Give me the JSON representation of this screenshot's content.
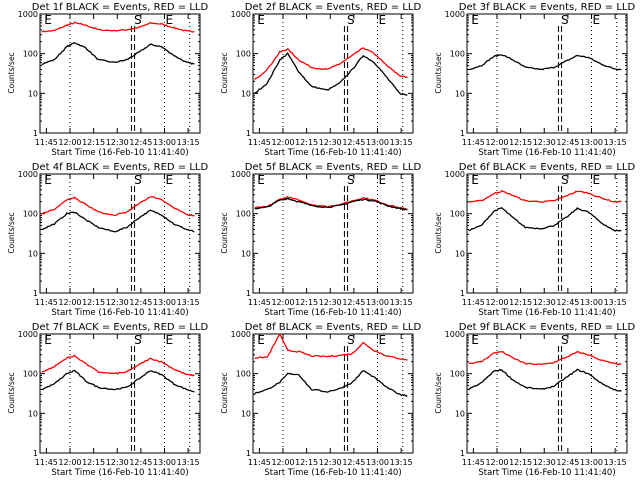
{
  "chart_data": {
    "type": "line",
    "grid": false,
    "y_scale": "log",
    "ylim": [
      1,
      1000
    ],
    "xlabel": "Start Time (16-Feb-10 11:41:40)",
    "ylabel": "Counts/sec",
    "y_ticks": [
      "1",
      "10",
      "100",
      "1000"
    ],
    "x_ticks": [
      "11:45",
      "12:00",
      "12:15",
      "12:30",
      "12:45",
      "13:00",
      "13:15"
    ],
    "series_colors": {
      "events": "#000000",
      "lld": "#ff0000"
    },
    "markers": {
      "dotted_lines": [
        "12:00",
        "13:00",
        "13:16"
      ],
      "dashed_lines": [
        "12:39",
        "12:41"
      ],
      "letters": [
        {
          "text": "E",
          "time": "11:43"
        },
        {
          "text": "S",
          "time": "12:40"
        },
        {
          "text": "E",
          "time": "13:00"
        }
      ]
    },
    "x": [
      "11:42",
      "11:50",
      "11:58",
      "12:03",
      "12:10",
      "12:18",
      "12:28",
      "12:36",
      "12:44",
      "12:51",
      "12:58",
      "13:06",
      "13:14",
      "13:19"
    ],
    "panels": [
      {
        "title": "Det 1f BLACK = Events, RED = LLD",
        "lld": [
          360,
          380,
          520,
          600,
          520,
          400,
          380,
          400,
          460,
          590,
          560,
          450,
          370,
          360
        ],
        "events": [
          55,
          70,
          150,
          190,
          140,
          70,
          60,
          70,
          110,
          170,
          150,
          90,
          60,
          55
        ]
      },
      {
        "title": "Det 2f BLACK = Events, RED = LLD",
        "lld": [
          22,
          40,
          110,
          130,
          70,
          45,
          40,
          55,
          90,
          140,
          100,
          50,
          28,
          25
        ],
        "events": [
          10,
          18,
          70,
          100,
          35,
          15,
          12,
          18,
          40,
          90,
          60,
          25,
          10,
          9
        ]
      },
      {
        "title": "Det 3f BLACK = Events, RED = LLD",
        "lld": null,
        "events": [
          40,
          50,
          85,
          95,
          70,
          45,
          40,
          45,
          65,
          90,
          80,
          55,
          42,
          40
        ]
      },
      {
        "title": "Det 4f BLACK = Events, RED = LLD",
        "lld": [
          100,
          130,
          220,
          250,
          170,
          110,
          90,
          110,
          180,
          270,
          230,
          140,
          95,
          90
        ],
        "events": [
          40,
          55,
          100,
          110,
          70,
          45,
          35,
          45,
          80,
          120,
          95,
          55,
          40,
          35
        ]
      },
      {
        "title": "Det 5f BLACK = Events, RED = LLD",
        "lld": [
          140,
          150,
          230,
          260,
          220,
          170,
          150,
          170,
          210,
          250,
          220,
          170,
          140,
          130
        ],
        "events": [
          135,
          145,
          220,
          240,
          200,
          160,
          145,
          160,
          200,
          230,
          210,
          160,
          135,
          125
        ]
      },
      {
        "title": "Det 6f BLACK = Events, RED = LLD",
        "lld": [
          200,
          210,
          320,
          370,
          290,
          210,
          200,
          210,
          280,
          370,
          330,
          250,
          200,
          200
        ],
        "events": [
          38,
          50,
          115,
          140,
          80,
          45,
          42,
          50,
          80,
          135,
          110,
          60,
          38,
          37
        ]
      },
      {
        "title": "Det 7f BLACK = Events, RED = LLD",
        "lld": [
          110,
          150,
          250,
          280,
          180,
          110,
          100,
          110,
          170,
          240,
          200,
          130,
          95,
          90
        ],
        "events": [
          40,
          55,
          100,
          120,
          65,
          45,
          40,
          45,
          75,
          120,
          95,
          55,
          40,
          35
        ]
      },
      {
        "title": "Det 8f BLACK = Events, RED = LLD",
        "lld": [
          250,
          260,
          1000,
          380,
          360,
          280,
          270,
          290,
          320,
          600,
          380,
          280,
          240,
          220
        ],
        "events": [
          32,
          40,
          60,
          100,
          95,
          40,
          35,
          42,
          60,
          120,
          80,
          45,
          30,
          28
        ]
      },
      {
        "title": "Det 9f BLACK = Events, RED = LLD",
        "lld": [
          180,
          200,
          330,
          360,
          250,
          180,
          170,
          190,
          260,
          350,
          300,
          220,
          180,
          170
        ],
        "events": [
          40,
          58,
          115,
          125,
          70,
          45,
          40,
          48,
          80,
          125,
          100,
          58,
          40,
          36
        ]
      }
    ]
  }
}
